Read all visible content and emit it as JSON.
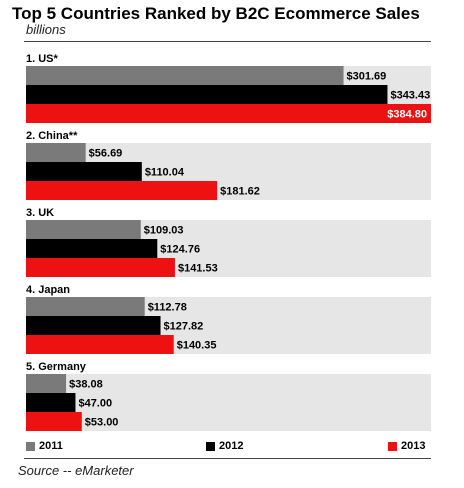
{
  "colors": {
    "2011": "#7a7a7a",
    "2012": "#000000",
    "2013": "#ee1111",
    "group_bg": "#e6e6e6"
  },
  "chart_data": {
    "type": "bar",
    "orientation": "horizontal",
    "title": "Top 5 Countries Ranked by B2C Ecommerce Sales",
    "unit_label": "billions",
    "categories": [
      "1. US*",
      "2. China**",
      "3. UK",
      "4. Japan",
      "5. Germany"
    ],
    "series": [
      {
        "name": "2011",
        "values": [
          301.69,
          56.69,
          109.03,
          112.78,
          38.08
        ],
        "labels": [
          "$301.69",
          "$56.69",
          "$109.03",
          "$112.78",
          "$38.08"
        ]
      },
      {
        "name": "2012",
        "values": [
          343.43,
          110.04,
          124.76,
          127.82,
          47.0
        ],
        "labels": [
          "$343.43",
          "$110.04",
          "$124.76",
          "$127.82",
          "$47.00"
        ]
      },
      {
        "name": "2013",
        "values": [
          384.8,
          181.62,
          141.53,
          140.35,
          53.0
        ],
        "labels": [
          "$384.80",
          "$181.62",
          "$141.53",
          "$140.35",
          "$53.00"
        ]
      }
    ],
    "xlim": [
      0,
      384.8
    ],
    "legend_position": "bottom",
    "grid": false
  },
  "source": "Source -- eMarketer"
}
